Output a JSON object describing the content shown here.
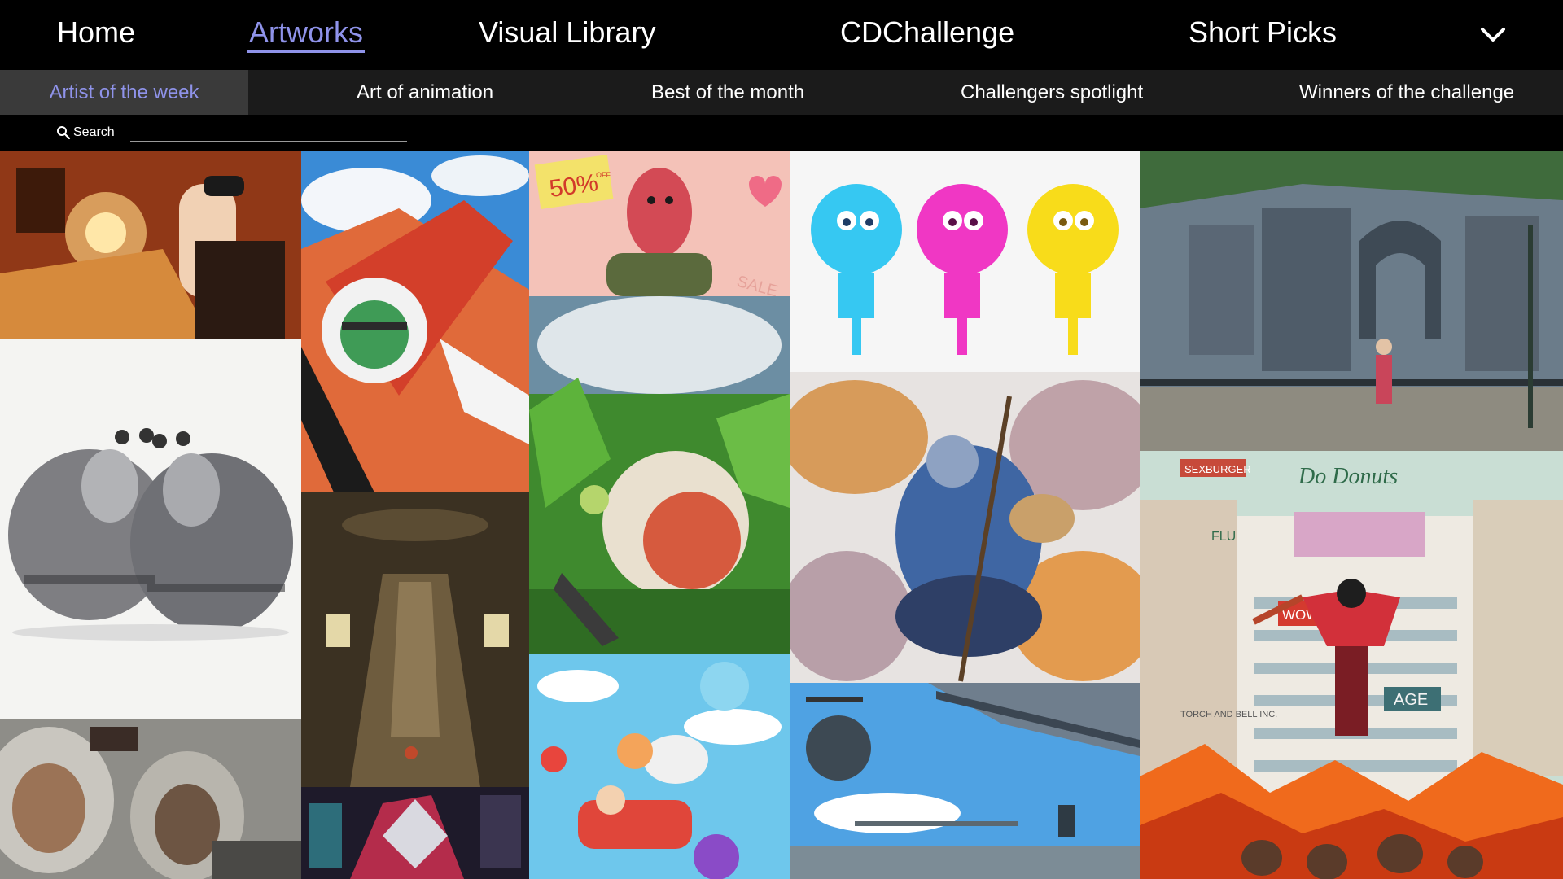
{
  "nav": {
    "items": [
      {
        "label": "Home",
        "active": false
      },
      {
        "label": "Artworks",
        "active": true
      },
      {
        "label": "Visual Library",
        "active": false
      },
      {
        "label": "CDChallenge",
        "active": false
      },
      {
        "label": "Short Picks",
        "active": false
      }
    ],
    "more_icon": "chevron-down-icon"
  },
  "subnav": {
    "items": [
      {
        "label": "Artist of the week",
        "active": true
      },
      {
        "label": "Art of animation",
        "active": false
      },
      {
        "label": "Best of the month",
        "active": false
      },
      {
        "label": "Challengers spotlight",
        "active": false
      },
      {
        "label": "Winners of the challenge",
        "active": false
      }
    ]
  },
  "search": {
    "label": "Search",
    "value": "",
    "placeholder": "",
    "icon": "search-icon"
  },
  "gallery": {
    "tiles": [
      {
        "id": "artist-at-drawing-desk"
      },
      {
        "id": "armored-rhino-creatures"
      },
      {
        "id": "astronaut-characters"
      },
      {
        "id": "football-player-leap"
      },
      {
        "id": "dark-tower-interior"
      },
      {
        "id": "neon-robot-figure"
      },
      {
        "id": "sale-shopkeeper",
        "texts": [
          "50%",
          "OFF",
          "SALE"
        ]
      },
      {
        "id": "jungle-beast-scene"
      },
      {
        "id": "flying-adventure-crew"
      },
      {
        "id": "three-round-characters"
      },
      {
        "id": "armored-rider-giant"
      },
      {
        "id": "harbor-sky-scene"
      },
      {
        "id": "overgrown-city-girl"
      },
      {
        "id": "rooftop-jumper-city",
        "texts": [
          "SEXBURGER",
          "Do Donuts",
          "FLU",
          "TORCH AND BELL INC.",
          "AGE",
          "WOW"
        ]
      }
    ]
  },
  "colors": {
    "accent": "#8f93ea",
    "background": "#000000",
    "subnav_bg": "#1b1b1b",
    "subnav_active_bg": "#3a3a3a"
  }
}
